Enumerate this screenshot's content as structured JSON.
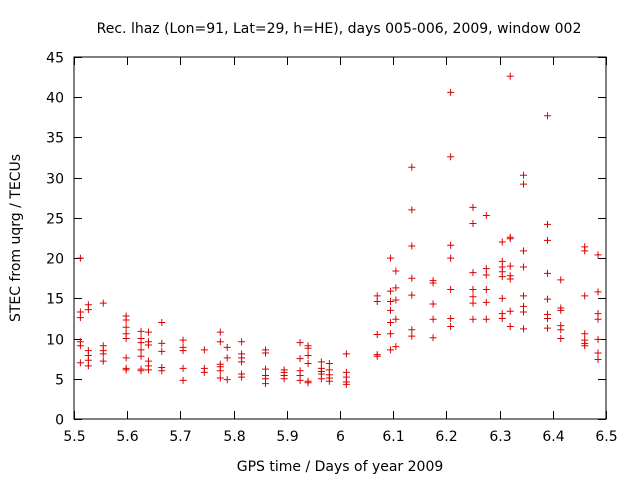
{
  "chart_data": {
    "type": "scatter",
    "title": "Rec. lhaz (Lon=91, Lat=29, h=HE), days 005-006, 2009, window 002",
    "xlabel": "GPS time / Days of year 2009",
    "ylabel": "STEC from uqrg / TECUs",
    "xlim": [
      5.5,
      6.5
    ],
    "ylim": [
      0,
      45
    ],
    "xticks": [
      5.5,
      5.6,
      5.7,
      5.8,
      5.9,
      6.0,
      6.1,
      6.2,
      6.3,
      6.4,
      6.5
    ],
    "xtick_labels": [
      "5.5",
      "5.6",
      "5.7",
      "5.8",
      "5.9",
      "6",
      "6.1",
      "6.2",
      "6.3",
      "6.4",
      "6.5"
    ],
    "yticks": [
      0,
      5,
      10,
      15,
      20,
      25,
      30,
      35,
      40,
      45
    ],
    "ytick_labels": [
      "0",
      "5",
      "10",
      "15",
      "20",
      "25",
      "30",
      "35",
      "40",
      "45"
    ],
    "grid": false,
    "marker": "+",
    "color": "#dd0000",
    "series": [
      {
        "name": "STEC",
        "points": [
          [
            5.512,
            20.0
          ],
          [
            5.512,
            13.3
          ],
          [
            5.512,
            12.6
          ],
          [
            5.512,
            9.6
          ],
          [
            5.512,
            9.1
          ],
          [
            5.512,
            7.0
          ],
          [
            5.527,
            14.2
          ],
          [
            5.527,
            13.6
          ],
          [
            5.527,
            8.5
          ],
          [
            5.527,
            7.9
          ],
          [
            5.527,
            7.3
          ],
          [
            5.527,
            6.6
          ],
          [
            5.555,
            14.4
          ],
          [
            5.555,
            9.1
          ],
          [
            5.555,
            8.5
          ],
          [
            5.555,
            8.1
          ],
          [
            5.555,
            7.2
          ],
          [
            5.598,
            12.8
          ],
          [
            5.598,
            12.3
          ],
          [
            5.598,
            11.4
          ],
          [
            5.598,
            10.6
          ],
          [
            5.598,
            10.0
          ],
          [
            5.598,
            7.6
          ],
          [
            5.598,
            6.3
          ],
          [
            5.598,
            6.1
          ],
          [
            5.626,
            10.9
          ],
          [
            5.626,
            10.0
          ],
          [
            5.626,
            9.5
          ],
          [
            5.626,
            8.6
          ],
          [
            5.626,
            7.8
          ],
          [
            5.626,
            6.2
          ],
          [
            5.626,
            6.0
          ],
          [
            5.64,
            10.8
          ],
          [
            5.64,
            9.6
          ],
          [
            5.64,
            9.2
          ],
          [
            5.64,
            7.2
          ],
          [
            5.64,
            6.6
          ],
          [
            5.64,
            6.1
          ],
          [
            5.665,
            12.0
          ],
          [
            5.665,
            9.4
          ],
          [
            5.665,
            8.4
          ],
          [
            5.665,
            6.4
          ],
          [
            5.665,
            6.0
          ],
          [
            5.705,
            9.8
          ],
          [
            5.705,
            8.9
          ],
          [
            5.705,
            8.5
          ],
          [
            5.705,
            6.3
          ],
          [
            5.705,
            4.8
          ],
          [
            5.745,
            8.6
          ],
          [
            5.745,
            6.3
          ],
          [
            5.745,
            5.8
          ],
          [
            5.775,
            10.8
          ],
          [
            5.775,
            9.6
          ],
          [
            5.775,
            6.8
          ],
          [
            5.775,
            6.5
          ],
          [
            5.775,
            6.0
          ],
          [
            5.775,
            5.1
          ],
          [
            5.788,
            8.9
          ],
          [
            5.788,
            7.6
          ],
          [
            5.788,
            4.9
          ],
          [
            5.815,
            9.6
          ],
          [
            5.815,
            8.1
          ],
          [
            5.815,
            7.6
          ],
          [
            5.815,
            7.1
          ],
          [
            5.815,
            5.6
          ],
          [
            5.815,
            5.2
          ],
          [
            5.86,
            8.6
          ],
          [
            5.86,
            8.2
          ],
          [
            5.86,
            6.2
          ],
          [
            5.86,
            5.4
          ],
          [
            5.86,
            5.0
          ],
          [
            5.86,
            4.4
          ],
          [
            5.895,
            6.1
          ],
          [
            5.895,
            5.8
          ],
          [
            5.895,
            5.4
          ],
          [
            5.895,
            5.0
          ],
          [
            5.925,
            9.5
          ],
          [
            5.925,
            7.5
          ],
          [
            5.925,
            6.0
          ],
          [
            5.925,
            5.4
          ],
          [
            5.925,
            4.8
          ],
          [
            5.94,
            9.1
          ],
          [
            5.94,
            8.8
          ],
          [
            5.94,
            7.9
          ],
          [
            5.94,
            6.9
          ],
          [
            5.94,
            4.7
          ],
          [
            5.94,
            4.5
          ],
          [
            5.965,
            7.1
          ],
          [
            5.965,
            6.3
          ],
          [
            5.965,
            5.9
          ],
          [
            5.965,
            5.6
          ],
          [
            5.965,
            5.0
          ],
          [
            5.98,
            6.9
          ],
          [
            5.98,
            6.1
          ],
          [
            5.98,
            5.5
          ],
          [
            5.98,
            5.1
          ],
          [
            5.98,
            4.7
          ],
          [
            6.012,
            8.1
          ],
          [
            6.012,
            5.8
          ],
          [
            6.012,
            5.2
          ],
          [
            6.012,
            4.6
          ],
          [
            6.012,
            4.3
          ],
          [
            6.07,
            15.3
          ],
          [
            6.07,
            14.6
          ],
          [
            6.07,
            10.5
          ],
          [
            6.07,
            8.0
          ],
          [
            6.07,
            7.8
          ],
          [
            6.095,
            20.0
          ],
          [
            6.095,
            15.9
          ],
          [
            6.095,
            14.6
          ],
          [
            6.095,
            13.5
          ],
          [
            6.095,
            12.0
          ],
          [
            6.095,
            10.6
          ],
          [
            6.095,
            8.6
          ],
          [
            6.105,
            18.4
          ],
          [
            6.105,
            16.3
          ],
          [
            6.105,
            14.8
          ],
          [
            6.105,
            12.4
          ],
          [
            6.105,
            9.0
          ],
          [
            6.135,
            31.3
          ],
          [
            6.135,
            26.0
          ],
          [
            6.135,
            21.5
          ],
          [
            6.135,
            17.5
          ],
          [
            6.135,
            15.4
          ],
          [
            6.135,
            11.1
          ],
          [
            6.135,
            10.3
          ],
          [
            6.175,
            17.2
          ],
          [
            6.175,
            16.9
          ],
          [
            6.175,
            14.3
          ],
          [
            6.175,
            12.4
          ],
          [
            6.175,
            10.1
          ],
          [
            6.208,
            40.6
          ],
          [
            6.208,
            32.6
          ],
          [
            6.208,
            21.6
          ],
          [
            6.208,
            20.0
          ],
          [
            6.208,
            16.1
          ],
          [
            6.208,
            12.5
          ],
          [
            6.208,
            11.5
          ],
          [
            6.25,
            26.3
          ],
          [
            6.25,
            24.3
          ],
          [
            6.25,
            18.2
          ],
          [
            6.25,
            16.1
          ],
          [
            6.25,
            15.2
          ],
          [
            6.25,
            14.4
          ],
          [
            6.25,
            12.4
          ],
          [
            6.275,
            25.3
          ],
          [
            6.275,
            18.7
          ],
          [
            6.275,
            17.9
          ],
          [
            6.275,
            16.1
          ],
          [
            6.275,
            14.5
          ],
          [
            6.275,
            12.4
          ],
          [
            6.305,
            22.0
          ],
          [
            6.305,
            19.6
          ],
          [
            6.305,
            18.9
          ],
          [
            6.305,
            18.3
          ],
          [
            6.305,
            17.7
          ],
          [
            6.305,
            15.0
          ],
          [
            6.305,
            13.1
          ],
          [
            6.305,
            12.5
          ],
          [
            6.32,
            42.6
          ],
          [
            6.32,
            22.6
          ],
          [
            6.32,
            22.4
          ],
          [
            6.32,
            19.0
          ],
          [
            6.32,
            17.8
          ],
          [
            6.32,
            17.4
          ],
          [
            6.32,
            13.4
          ],
          [
            6.32,
            11.5
          ],
          [
            6.345,
            30.3
          ],
          [
            6.345,
            29.2
          ],
          [
            6.345,
            20.9
          ],
          [
            6.345,
            18.9
          ],
          [
            6.345,
            15.3
          ],
          [
            6.345,
            14.0
          ],
          [
            6.345,
            13.3
          ],
          [
            6.345,
            11.2
          ],
          [
            6.39,
            37.7
          ],
          [
            6.39,
            24.2
          ],
          [
            6.39,
            22.2
          ],
          [
            6.39,
            18.1
          ],
          [
            6.39,
            14.9
          ],
          [
            6.39,
            13.0
          ],
          [
            6.39,
            12.5
          ],
          [
            6.39,
            11.3
          ],
          [
            6.415,
            17.3
          ],
          [
            6.415,
            13.8
          ],
          [
            6.415,
            13.5
          ],
          [
            6.415,
            11.6
          ],
          [
            6.415,
            11.1
          ],
          [
            6.415,
            10.0
          ],
          [
            6.46,
            21.4
          ],
          [
            6.46,
            20.9
          ],
          [
            6.46,
            15.3
          ],
          [
            6.46,
            10.6
          ],
          [
            6.46,
            9.8
          ],
          [
            6.46,
            9.4
          ],
          [
            6.46,
            9.1
          ],
          [
            6.485,
            20.4
          ],
          [
            6.485,
            15.8
          ],
          [
            6.485,
            13.1
          ],
          [
            6.485,
            12.4
          ],
          [
            6.485,
            9.9
          ],
          [
            6.485,
            8.2
          ],
          [
            6.485,
            7.4
          ]
        ]
      }
    ]
  }
}
